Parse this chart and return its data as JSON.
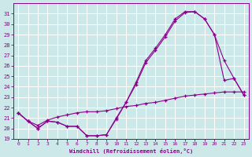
{
  "xlabel": "Windchill (Refroidissement éolien,°C)",
  "background_color": "#cce8e8",
  "grid_color": "#ffffff",
  "line_color": "#8b008b",
  "xlim": [
    -0.5,
    23.5
  ],
  "ylim": [
    19,
    32
  ],
  "yticks": [
    19,
    20,
    21,
    22,
    23,
    24,
    25,
    26,
    27,
    28,
    29,
    30,
    31
  ],
  "xticks": [
    0,
    1,
    2,
    3,
    4,
    5,
    6,
    7,
    8,
    9,
    10,
    11,
    12,
    13,
    14,
    15,
    16,
    17,
    18,
    19,
    20,
    21,
    22,
    23
  ],
  "curve1_x": [
    0,
    1,
    2,
    3,
    4,
    5,
    6,
    7,
    8,
    9,
    10,
    11,
    12,
    13,
    14,
    15,
    16,
    17,
    18,
    19,
    20,
    21,
    22,
    23
  ],
  "curve1_y": [
    21.5,
    20.7,
    20.0,
    20.7,
    20.6,
    20.2,
    20.2,
    19.3,
    19.3,
    19.4,
    20.9,
    22.5,
    24.2,
    26.3,
    27.5,
    28.8,
    30.3,
    31.1,
    31.2,
    30.5,
    29.0,
    26.5,
    24.8,
    23.2
  ],
  "curve2_x": [
    0,
    1,
    2,
    3,
    4,
    5,
    6,
    7,
    8,
    9,
    10,
    11,
    12,
    13,
    14,
    15,
    16,
    17,
    18,
    19,
    20,
    21,
    22,
    23
  ],
  "curve2_y": [
    21.5,
    20.7,
    20.0,
    20.7,
    20.6,
    20.2,
    20.2,
    19.3,
    19.3,
    19.4,
    21.0,
    22.5,
    24.4,
    26.5,
    27.7,
    29.0,
    30.5,
    31.2,
    31.2,
    30.5,
    29.0,
    24.6,
    24.8,
    23.2
  ],
  "curve3_x": [
    0,
    1,
    2,
    3,
    4,
    5,
    6,
    7,
    8,
    9,
    10,
    11,
    12,
    13,
    14,
    15,
    16,
    17,
    18,
    19,
    20,
    21,
    22,
    23
  ],
  "curve3_y": [
    21.5,
    20.7,
    20.3,
    20.8,
    21.1,
    21.3,
    21.5,
    21.6,
    21.6,
    21.7,
    21.9,
    22.1,
    22.2,
    22.4,
    22.5,
    22.7,
    22.9,
    23.1,
    23.2,
    23.3,
    23.4,
    23.5,
    23.5,
    23.5
  ]
}
